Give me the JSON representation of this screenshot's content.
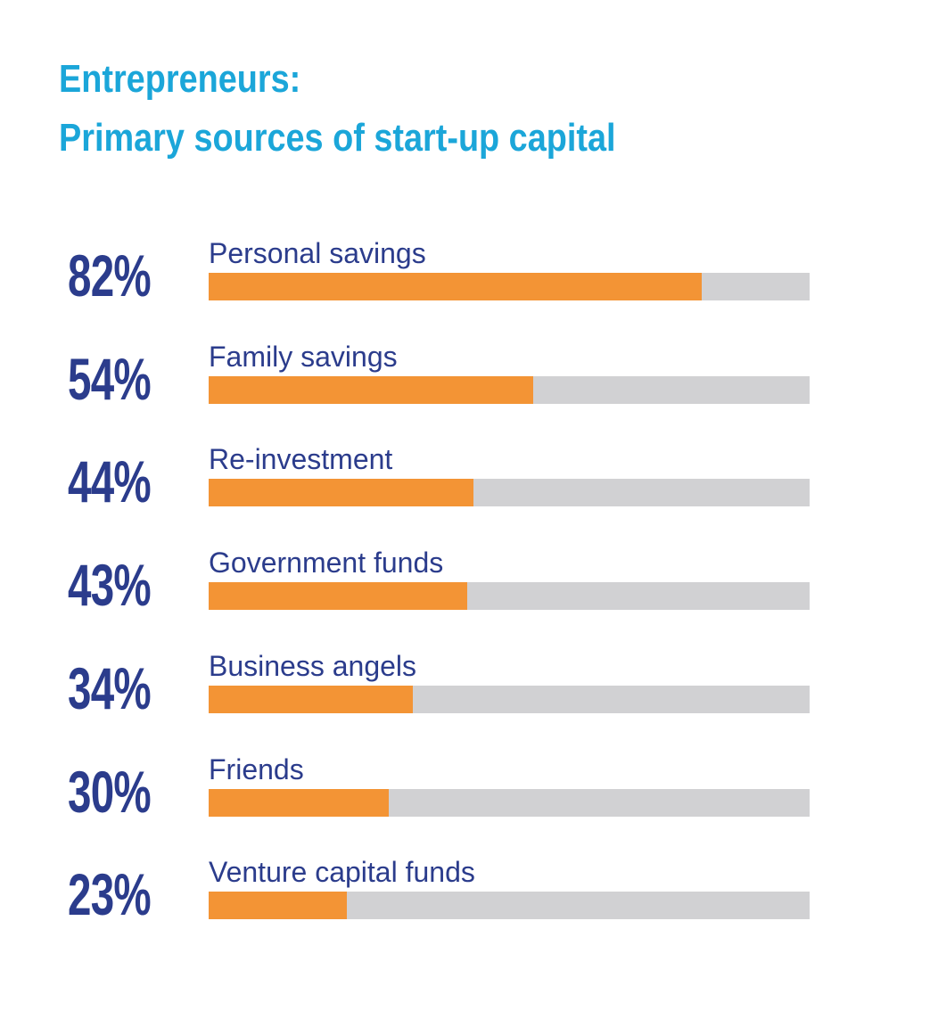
{
  "title": {
    "line1": "Entrepreneurs:",
    "line2": "Primary sources of start-up capital"
  },
  "colors": {
    "title": "#1ba6d9",
    "text": "#2b3c8c",
    "bar_fill": "#f39435",
    "bar_track": "#d1d1d3"
  },
  "chart_data": {
    "type": "bar",
    "orientation": "horizontal",
    "title": "Entrepreneurs: Primary sources of start-up capital",
    "categories": [
      "Personal savings",
      "Family savings",
      "Re-investment",
      "Government funds",
      "Business angels",
      "Friends",
      "Venture capital funds"
    ],
    "values": [
      82,
      54,
      44,
      43,
      34,
      30,
      23
    ],
    "value_labels": [
      "82%",
      "54%",
      "44%",
      "43%",
      "34%",
      "30%",
      "23%"
    ],
    "unit": "%",
    "xlim": [
      0,
      100
    ],
    "grid": false,
    "legend": "none"
  }
}
